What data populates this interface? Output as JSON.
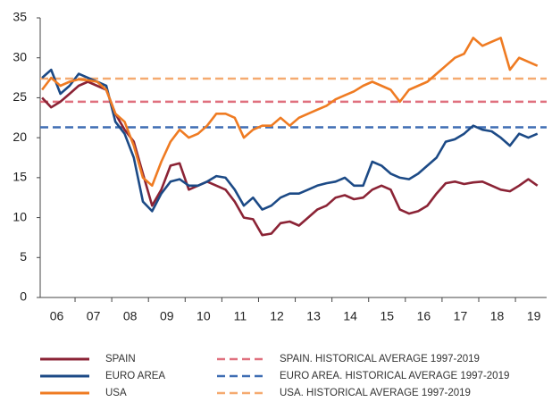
{
  "chart_data": {
    "type": "line",
    "x": [
      2006.1,
      2006.35,
      2006.6,
      2006.85,
      2007.1,
      2007.35,
      2007.6,
      2007.85,
      2008.1,
      2008.35,
      2008.6,
      2008.85,
      2009.1,
      2009.35,
      2009.6,
      2009.85,
      2010.1,
      2010.35,
      2010.6,
      2010.85,
      2011.1,
      2011.35,
      2011.6,
      2011.85,
      2012.1,
      2012.35,
      2012.6,
      2012.85,
      2013.1,
      2013.35,
      2013.6,
      2013.85,
      2014.1,
      2014.35,
      2014.6,
      2014.85,
      2015.1,
      2015.35,
      2015.6,
      2015.85,
      2016.1,
      2016.35,
      2016.6,
      2016.85,
      2017.1,
      2017.35,
      2017.6,
      2017.85,
      2018.1,
      2018.35,
      2018.6,
      2018.85,
      2019.1,
      2019.35,
      2019.6
    ],
    "series": [
      {
        "name": "SPAIN",
        "color": "#8b2335",
        "values": [
          25,
          23.8,
          24.5,
          25.5,
          26.5,
          27,
          26.5,
          26,
          23,
          21,
          19.5,
          15.5,
          11.5,
          13.5,
          16.5,
          16.8,
          13.5,
          14,
          14.5,
          14,
          13.5,
          12,
          10,
          9.8,
          7.8,
          8,
          9.3,
          9.5,
          9,
          10,
          11,
          11.5,
          12.5,
          12.8,
          12.3,
          12.5,
          13.5,
          14,
          13.5,
          11,
          10.5,
          10.8,
          11.5,
          13,
          14.3,
          14.5,
          14.2,
          14.4,
          14.5,
          14,
          13.5,
          13.3,
          14,
          14.8,
          14
        ]
      },
      {
        "name": "EURO AREA",
        "color": "#1c4a86",
        "values": [
          27.5,
          28.5,
          25.5,
          26.5,
          28,
          27.5,
          27,
          26.5,
          22,
          20.5,
          17.5,
          12,
          10.8,
          13,
          14.5,
          14.8,
          14,
          14,
          14.5,
          15.2,
          15,
          13.5,
          11.5,
          12.5,
          11,
          11.5,
          12.5,
          13,
          13,
          13.5,
          14,
          14.3,
          14.5,
          15,
          14,
          14,
          17,
          16.5,
          15.5,
          15,
          14.8,
          15.5,
          16.5,
          17.5,
          19.5,
          19.8,
          20.5,
          21.5,
          21,
          20.8,
          20,
          19,
          20.5,
          20,
          20.5
        ]
      },
      {
        "name": "USA",
        "color": "#ef7b22",
        "values": [
          26,
          27.5,
          26.5,
          27,
          27.3,
          27.2,
          27,
          26,
          23,
          22,
          19,
          15,
          14,
          17,
          19.5,
          21,
          20,
          20.5,
          21.5,
          23,
          23,
          22.5,
          20,
          21,
          21.5,
          21.5,
          22.5,
          21.5,
          22.5,
          23,
          23.5,
          24,
          24.8,
          25.3,
          25.8,
          26.5,
          27,
          26.5,
          26,
          24.5,
          26,
          26.5,
          27,
          28,
          29,
          30,
          30.5,
          32.5,
          31.5,
          32,
          32.5,
          28.5,
          30,
          29.5,
          29
        ]
      }
    ],
    "reference_lines": [
      {
        "name": "SPAIN. HISTORICAL AVERAGE 1997-2019",
        "color": "#e0707e",
        "value": 24.5
      },
      {
        "name": "EURO AREA. HISTORICAL AVERAGE 1997-2019",
        "color": "#3e6db3",
        "value": 21.3
      },
      {
        "name": "USA. HISTORICAL AVERAGE 1997-2019",
        "color": "#f5aa70",
        "value": 27.4
      }
    ],
    "xlim": [
      2006.05,
      2019.85
    ],
    "xticks": [
      {
        "value": 2006.5,
        "label": "06"
      },
      {
        "value": 2007.5,
        "label": "07"
      },
      {
        "value": 2008.5,
        "label": "08"
      },
      {
        "value": 2009.5,
        "label": "09"
      },
      {
        "value": 2010.5,
        "label": "10"
      },
      {
        "value": 2011.5,
        "label": "11"
      },
      {
        "value": 2012.5,
        "label": "12"
      },
      {
        "value": 2013.5,
        "label": "13"
      },
      {
        "value": 2014.5,
        "label": "14"
      },
      {
        "value": 2015.5,
        "label": "15"
      },
      {
        "value": 2016.5,
        "label": "16"
      },
      {
        "value": 2017.5,
        "label": "17"
      },
      {
        "value": 2018.5,
        "label": "18"
      },
      {
        "value": 2019.5,
        "label": "19"
      }
    ],
    "ylim": [
      0,
      35
    ],
    "yticks": [
      0,
      5,
      10,
      15,
      20,
      25,
      30,
      35
    ],
    "grid": false,
    "legend": "bottom"
  }
}
